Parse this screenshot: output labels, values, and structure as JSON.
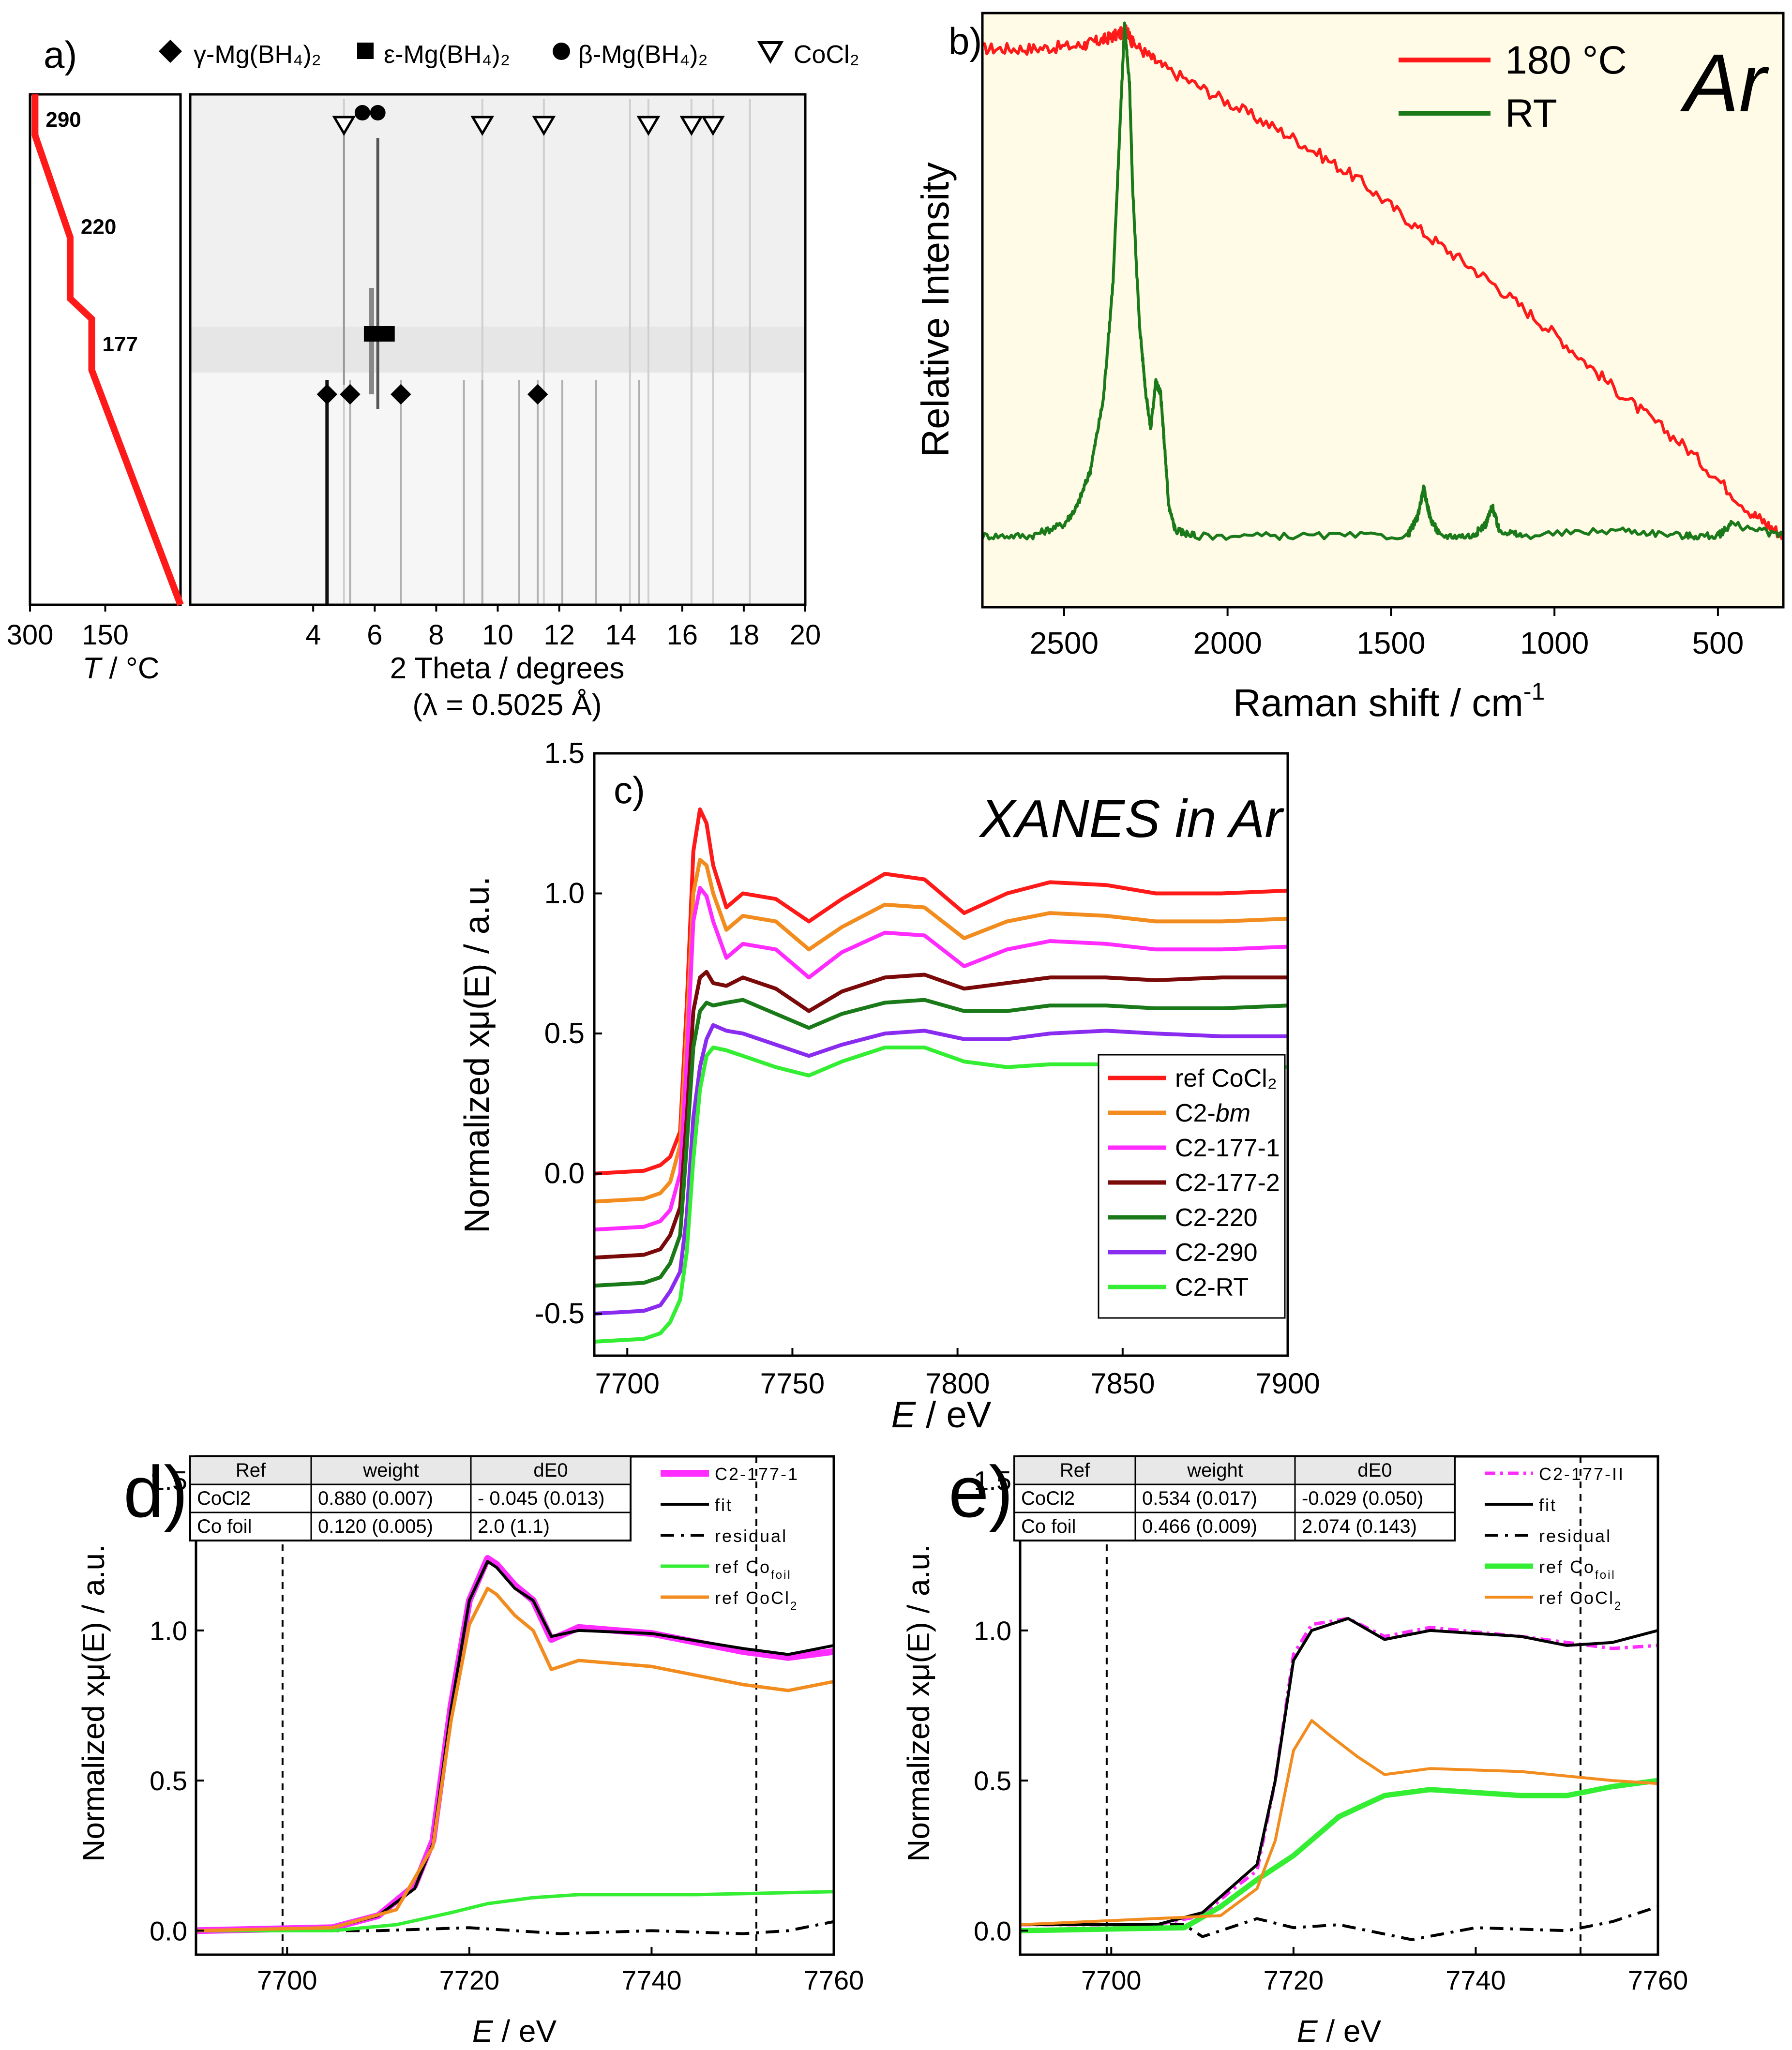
{
  "colors": {
    "red": "#ff1a1a",
    "orange": "#f28c1e",
    "magenta": "#ff2bff",
    "dark_red": "#7a0a0a",
    "dark_green": "#1a7a1a",
    "purple": "#8a2cf0",
    "light_green": "#33ee33",
    "black": "#000000",
    "raman_bg": "#fffbe6"
  },
  "chart_data": [
    {
      "id": "a",
      "panel_label": "a)",
      "type": "heatmap",
      "description_kind": "in-situ SR-PXD temperature-resolved",
      "temperature_profile": {
        "xlabel_italic": "T",
        "xlabel_rest": " / °C",
        "x_ticks": [
          "300",
          "150"
        ],
        "xlim": [
          300,
          0
        ],
        "points": [
          {
            "T": 290,
            "t": 0
          },
          {
            "T": 290,
            "t": 0.08
          },
          {
            "T": 220,
            "t": 0.28
          },
          {
            "T": 220,
            "t": 0.4
          },
          {
            "T": 177,
            "t": 0.44
          },
          {
            "T": 177,
            "t": 0.54
          },
          {
            "T": 0,
            "t": 1
          }
        ],
        "labels": [
          {
            "text": "290",
            "T": 290,
            "t": 0.05
          },
          {
            "text": "220",
            "T": 220,
            "t": 0.26
          },
          {
            "text": "177",
            "T": 177,
            "t": 0.49
          }
        ]
      },
      "diffraction": {
        "xlabel": "2 Theta / degrees",
        "xlabel2": "(λ = 0.5025 Å)",
        "xlim": [
          0,
          20
        ],
        "x_ticks": [
          "4",
          "6",
          "8",
          "10",
          "12",
          "14",
          "16",
          "18",
          "20"
        ],
        "legend": [
          {
            "symbol": "diamond",
            "text": "γ-Mg(BH₄)₂"
          },
          {
            "symbol": "square",
            "text": "ε-Mg(BH₄)₂"
          },
          {
            "symbol": "circle",
            "text": "β-Mg(BH₄)₂"
          },
          {
            "symbol": "triangle-down",
            "text": "CoCl₂"
          }
        ],
        "markers": {
          "gamma": [
            4.45,
            5.2,
            6.85,
            11.3
          ],
          "epsilon": [
            5.9,
            6.4
          ],
          "beta": [
            5.6,
            6.1
          ],
          "CoCl2": [
            5.0,
            9.5,
            11.5,
            14.9,
            16.3,
            17.0
          ]
        }
      }
    },
    {
      "id": "b",
      "panel_label": "b)",
      "type": "line",
      "title": "Ar",
      "xlabel": "Raman shift / cm",
      "xlabel_sup": "-1",
      "ylabel": "Relative Intensity",
      "xlim": [
        2750,
        300
      ],
      "x_ticks": [
        "2500",
        "2000",
        "1500",
        "1000",
        "500"
      ],
      "series": [
        {
          "name": "180 °C",
          "color": "#ff1a1a",
          "x": [
            2750,
            2600,
            2450,
            2380,
            2330,
            2310,
            2290,
            2200,
            2000,
            1800,
            1600,
            1400,
            1200,
            1000,
            800,
            600,
            400,
            300
          ],
          "y": [
            0.94,
            0.94,
            0.945,
            0.955,
            0.965,
            0.97,
            0.95,
            0.91,
            0.85,
            0.79,
            0.72,
            0.63,
            0.55,
            0.46,
            0.36,
            0.27,
            0.16,
            0.12
          ]
        },
        {
          "name": "RT",
          "color": "#1a7a1a",
          "x": [
            2750,
            2600,
            2500,
            2460,
            2420,
            2380,
            2350,
            2330,
            2315,
            2300,
            2290,
            2270,
            2250,
            2235,
            2220,
            2205,
            2190,
            2180,
            2160,
            2100,
            1800,
            1450,
            1420,
            1400,
            1380,
            1350,
            1250,
            1210,
            1190,
            1170,
            1100,
            800,
            600,
            500,
            460,
            300
          ],
          "y": [
            0.12,
            0.12,
            0.14,
            0.17,
            0.23,
            0.35,
            0.55,
            0.8,
            0.98,
            0.88,
            0.7,
            0.48,
            0.36,
            0.3,
            0.38,
            0.36,
            0.25,
            0.17,
            0.13,
            0.12,
            0.12,
            0.12,
            0.15,
            0.2,
            0.15,
            0.12,
            0.12,
            0.14,
            0.17,
            0.13,
            0.12,
            0.13,
            0.12,
            0.12,
            0.14,
            0.12
          ]
        }
      ]
    },
    {
      "id": "c",
      "panel_label": "c)",
      "type": "line",
      "title": "XANES in Ar",
      "xlabel_italic": "E",
      "xlabel_rest": " / eV",
      "ylabel": "Normalized xμ(E) / a.u.",
      "xlim": [
        7690,
        7900
      ],
      "ylim": [
        -0.65,
        1.5
      ],
      "x_ticks": [
        7700,
        7750,
        7800,
        7850,
        7900
      ],
      "y_ticks": [
        "1.5",
        "1.0",
        "0.5",
        "0.0",
        "-0.5"
      ],
      "y_tick_values": [
        1.5,
        1.0,
        0.5,
        0.0,
        -0.5
      ],
      "base_x": [
        7690,
        7705,
        7710,
        7713,
        7716,
        7718,
        7720,
        7722,
        7724,
        7726,
        7730,
        7735,
        7745,
        7755,
        7765,
        7778,
        7790,
        7802,
        7815,
        7828,
        7845,
        7860,
        7880,
        7900
      ],
      "legend": [
        "ref CoCl₂",
        "C2-bm",
        "C2-177-1",
        "C2-177-2",
        "C2-220",
        "C2-290",
        "C2-RT"
      ],
      "series": [
        {
          "name": "ref CoCl2",
          "color": "#ff1a1a",
          "y": [
            0.0,
            0.01,
            0.03,
            0.06,
            0.15,
            0.6,
            1.15,
            1.3,
            1.25,
            1.1,
            0.95,
            1.0,
            0.98,
            0.9,
            0.98,
            1.07,
            1.05,
            0.93,
            1.0,
            1.04,
            1.03,
            1.0,
            1.0,
            1.01
          ]
        },
        {
          "name": "C2-bm",
          "color": "#f28c1e",
          "y": [
            -0.1,
            -0.09,
            -0.07,
            -0.03,
            0.1,
            0.5,
            1.0,
            1.12,
            1.1,
            1.0,
            0.87,
            0.92,
            0.9,
            0.8,
            0.88,
            0.96,
            0.95,
            0.84,
            0.9,
            0.93,
            0.92,
            0.9,
            0.9,
            0.91
          ]
        },
        {
          "name": "C2-177-1",
          "color": "#ff2bff",
          "y": [
            -0.2,
            -0.19,
            -0.17,
            -0.13,
            0.0,
            0.4,
            0.9,
            1.02,
            0.99,
            0.9,
            0.77,
            0.82,
            0.8,
            0.7,
            0.79,
            0.86,
            0.85,
            0.74,
            0.8,
            0.83,
            0.82,
            0.8,
            0.8,
            0.81
          ]
        },
        {
          "name": "C2-177-2",
          "color": "#7a0a0a",
          "y": [
            -0.3,
            -0.29,
            -0.27,
            -0.22,
            -0.12,
            0.2,
            0.58,
            0.7,
            0.72,
            0.68,
            0.67,
            0.7,
            0.66,
            0.58,
            0.65,
            0.7,
            0.71,
            0.66,
            0.68,
            0.7,
            0.7,
            0.69,
            0.7,
            0.7
          ]
        },
        {
          "name": "C2-220",
          "color": "#1a7a1a",
          "y": [
            -0.4,
            -0.39,
            -0.37,
            -0.32,
            -0.22,
            0.1,
            0.45,
            0.58,
            0.61,
            0.6,
            0.61,
            0.62,
            0.57,
            0.52,
            0.57,
            0.61,
            0.62,
            0.58,
            0.58,
            0.6,
            0.6,
            0.59,
            0.59,
            0.6
          ]
        },
        {
          "name": "C2-290",
          "color": "#8a2cf0",
          "y": [
            -0.5,
            -0.49,
            -0.47,
            -0.42,
            -0.35,
            -0.15,
            0.2,
            0.38,
            0.48,
            0.53,
            0.51,
            0.5,
            0.46,
            0.42,
            0.46,
            0.5,
            0.51,
            0.48,
            0.48,
            0.5,
            0.51,
            0.5,
            0.49,
            0.49
          ]
        },
        {
          "name": "C2-RT",
          "color": "#33ee33",
          "y": [
            -0.6,
            -0.59,
            -0.57,
            -0.53,
            -0.45,
            -0.28,
            0.05,
            0.3,
            0.42,
            0.45,
            0.44,
            0.42,
            0.38,
            0.35,
            0.4,
            0.45,
            0.45,
            0.4,
            0.38,
            0.39,
            0.39,
            0.38,
            0.38,
            0.38
          ]
        }
      ]
    },
    {
      "id": "d",
      "panel_label": "d)",
      "type": "line",
      "xlabel_italic": "E",
      "xlabel_rest": " / eV",
      "ylabel": "Normalized xμ(E) / a.u.",
      "xlim": [
        7690,
        7760
      ],
      "ylim": [
        -0.08,
        1.58
      ],
      "x_ticks": [
        7700,
        7720,
        7740,
        7760
      ],
      "y_ticks": [
        "1.5",
        "1.0",
        "0.5",
        "0.0"
      ],
      "y_tick_values": [
        1.5,
        1.0,
        0.5,
        0.0
      ],
      "vlines": [
        7699.5,
        7751.5
      ],
      "table": {
        "headers": [
          "Ref",
          "weight",
          "dE0"
        ],
        "rows": [
          [
            "CoCl2",
            "0.880 (0.007)",
            "- 0.045 (0.013)"
          ],
          [
            "Co foil",
            "0.120 (0.005)",
            "2.0 (1.1)"
          ]
        ]
      },
      "legend": [
        "C2-177-1",
        "fit",
        "residual",
        "ref Co foil",
        "ref CoCl2"
      ],
      "series": [
        {
          "name": "C2-177-1",
          "color": "#ff2bff",
          "dash": "none",
          "width": 14,
          "x": [
            7690,
            7705,
            7710,
            7714,
            7716,
            7718,
            7720,
            7722,
            7723,
            7725,
            7727,
            7729,
            7732,
            7740,
            7750,
            7755,
            7760
          ],
          "y": [
            0.0,
            0.01,
            0.05,
            0.15,
            0.3,
            0.75,
            1.1,
            1.24,
            1.22,
            1.15,
            1.1,
            0.97,
            1.01,
            0.99,
            0.93,
            0.91,
            0.93
          ]
        },
        {
          "name": "fit",
          "color": "#000000",
          "dash": "none",
          "width": 6,
          "x": [
            7690,
            7705,
            7710,
            7714,
            7716,
            7718,
            7720,
            7722,
            7723,
            7725,
            7727,
            7729,
            7732,
            7740,
            7750,
            7755,
            7760
          ],
          "y": [
            0.0,
            0.01,
            0.05,
            0.14,
            0.29,
            0.74,
            1.1,
            1.23,
            1.21,
            1.14,
            1.1,
            0.98,
            1.0,
            0.99,
            0.94,
            0.92,
            0.95
          ]
        },
        {
          "name": "residual",
          "color": "#000000",
          "dash": "28,14,6,14",
          "width": 6,
          "x": [
            7690,
            7710,
            7720,
            7725,
            7730,
            7740,
            7750,
            7755,
            7760
          ],
          "y": [
            0.0,
            0.0,
            0.01,
            0.0,
            -0.01,
            0.0,
            -0.01,
            0.0,
            0.03
          ]
        },
        {
          "name": "ref Co foil",
          "color": "#33ee33",
          "dash": "none",
          "width": 7,
          "x": [
            7690,
            7705,
            7712,
            7718,
            7722,
            7727,
            7732,
            7745,
            7760
          ],
          "y": [
            0.0,
            0.0,
            0.02,
            0.06,
            0.09,
            0.11,
            0.12,
            0.12,
            0.13
          ]
        },
        {
          "name": "ref CoCl2",
          "color": "#f28c1e",
          "dash": "none",
          "width": 7,
          "x": [
            7690,
            7705,
            7712,
            7716,
            7718,
            7720,
            7722,
            7723,
            7725,
            7727,
            7729,
            7732,
            7740,
            7750,
            7755,
            7760
          ],
          "y": [
            0.0,
            0.01,
            0.07,
            0.28,
            0.7,
            1.02,
            1.14,
            1.12,
            1.05,
            1.0,
            0.87,
            0.9,
            0.88,
            0.82,
            0.8,
            0.83
          ]
        }
      ]
    },
    {
      "id": "e",
      "panel_label": "e)",
      "type": "line",
      "xlabel_italic": "E",
      "xlabel_rest": " / eV",
      "ylabel": "Normalized xμ(E) / a.u.",
      "xlim": [
        7690,
        7760
      ],
      "ylim": [
        -0.08,
        1.58
      ],
      "x_ticks": [
        7700,
        7720,
        7740,
        7760
      ],
      "y_ticks": [
        "1.5",
        "1.0",
        "0.5",
        "0.0"
      ],
      "y_tick_values": [
        1.5,
        1.0,
        0.5,
        0.0
      ],
      "vlines": [
        7699.5,
        7751.5
      ],
      "table": {
        "headers": [
          "Ref",
          "weight",
          "dE0"
        ],
        "rows": [
          [
            "CoCl2",
            "0.534 (0.017)",
            "-0.029 (0.050)"
          ],
          [
            "Co foil",
            "0.466 (0.009)",
            "2.074 (0.143)"
          ]
        ]
      },
      "legend": [
        "C2-177-II",
        "fit",
        "residual",
        "ref Co foil",
        "ref CoCl2"
      ],
      "series": [
        {
          "name": "C2-177-II",
          "color": "#ff2bff",
          "dash": "22,10,6,10",
          "width": 7,
          "x": [
            7690,
            7705,
            7710,
            7713,
            7716,
            7718,
            7720,
            7722,
            7726,
            7730,
            7735,
            7745,
            7750,
            7755,
            7760
          ],
          "y": [
            0.02,
            0.02,
            0.05,
            0.13,
            0.2,
            0.5,
            0.92,
            1.02,
            1.04,
            0.98,
            1.01,
            0.98,
            0.96,
            0.94,
            0.95
          ]
        },
        {
          "name": "fit",
          "color": "#000000",
          "dash": "none",
          "width": 6,
          "x": [
            7690,
            7705,
            7710,
            7713,
            7716,
            7718,
            7720,
            7722,
            7726,
            7730,
            7735,
            7745,
            7750,
            7755,
            7760
          ],
          "y": [
            0.02,
            0.02,
            0.06,
            0.14,
            0.22,
            0.5,
            0.9,
            1.0,
            1.04,
            0.97,
            1.0,
            0.98,
            0.95,
            0.96,
            1.0
          ]
        },
        {
          "name": "residual",
          "color": "#000000",
          "dash": "28,14,6,14",
          "width": 6,
          "x": [
            7690,
            7708,
            7710,
            7713,
            7716,
            7720,
            7725,
            7733,
            7740,
            7750,
            7755,
            7760
          ],
          "y": [
            0.02,
            0.02,
            -0.02,
            0.01,
            0.04,
            0.01,
            0.02,
            -0.03,
            0.01,
            0.0,
            0.03,
            0.08
          ]
        },
        {
          "name": "ref Co foil",
          "color": "#33ee33",
          "dash": "none",
          "width": 11,
          "x": [
            7690,
            7708,
            7712,
            7716,
            7720,
            7725,
            7730,
            7735,
            7745,
            7750,
            7755,
            7760
          ],
          "y": [
            0.0,
            0.01,
            0.08,
            0.17,
            0.25,
            0.38,
            0.45,
            0.47,
            0.45,
            0.45,
            0.48,
            0.5
          ]
        },
        {
          "name": "ref CoCl2",
          "color": "#f28c1e",
          "dash": "none",
          "width": 6,
          "x": [
            7690,
            7712,
            7716,
            7718,
            7720,
            7722,
            7724,
            7727,
            7730,
            7735,
            7745,
            7755,
            7760
          ],
          "y": [
            0.02,
            0.05,
            0.14,
            0.3,
            0.6,
            0.7,
            0.65,
            0.58,
            0.52,
            0.54,
            0.53,
            0.5,
            0.49
          ]
        }
      ]
    }
  ]
}
